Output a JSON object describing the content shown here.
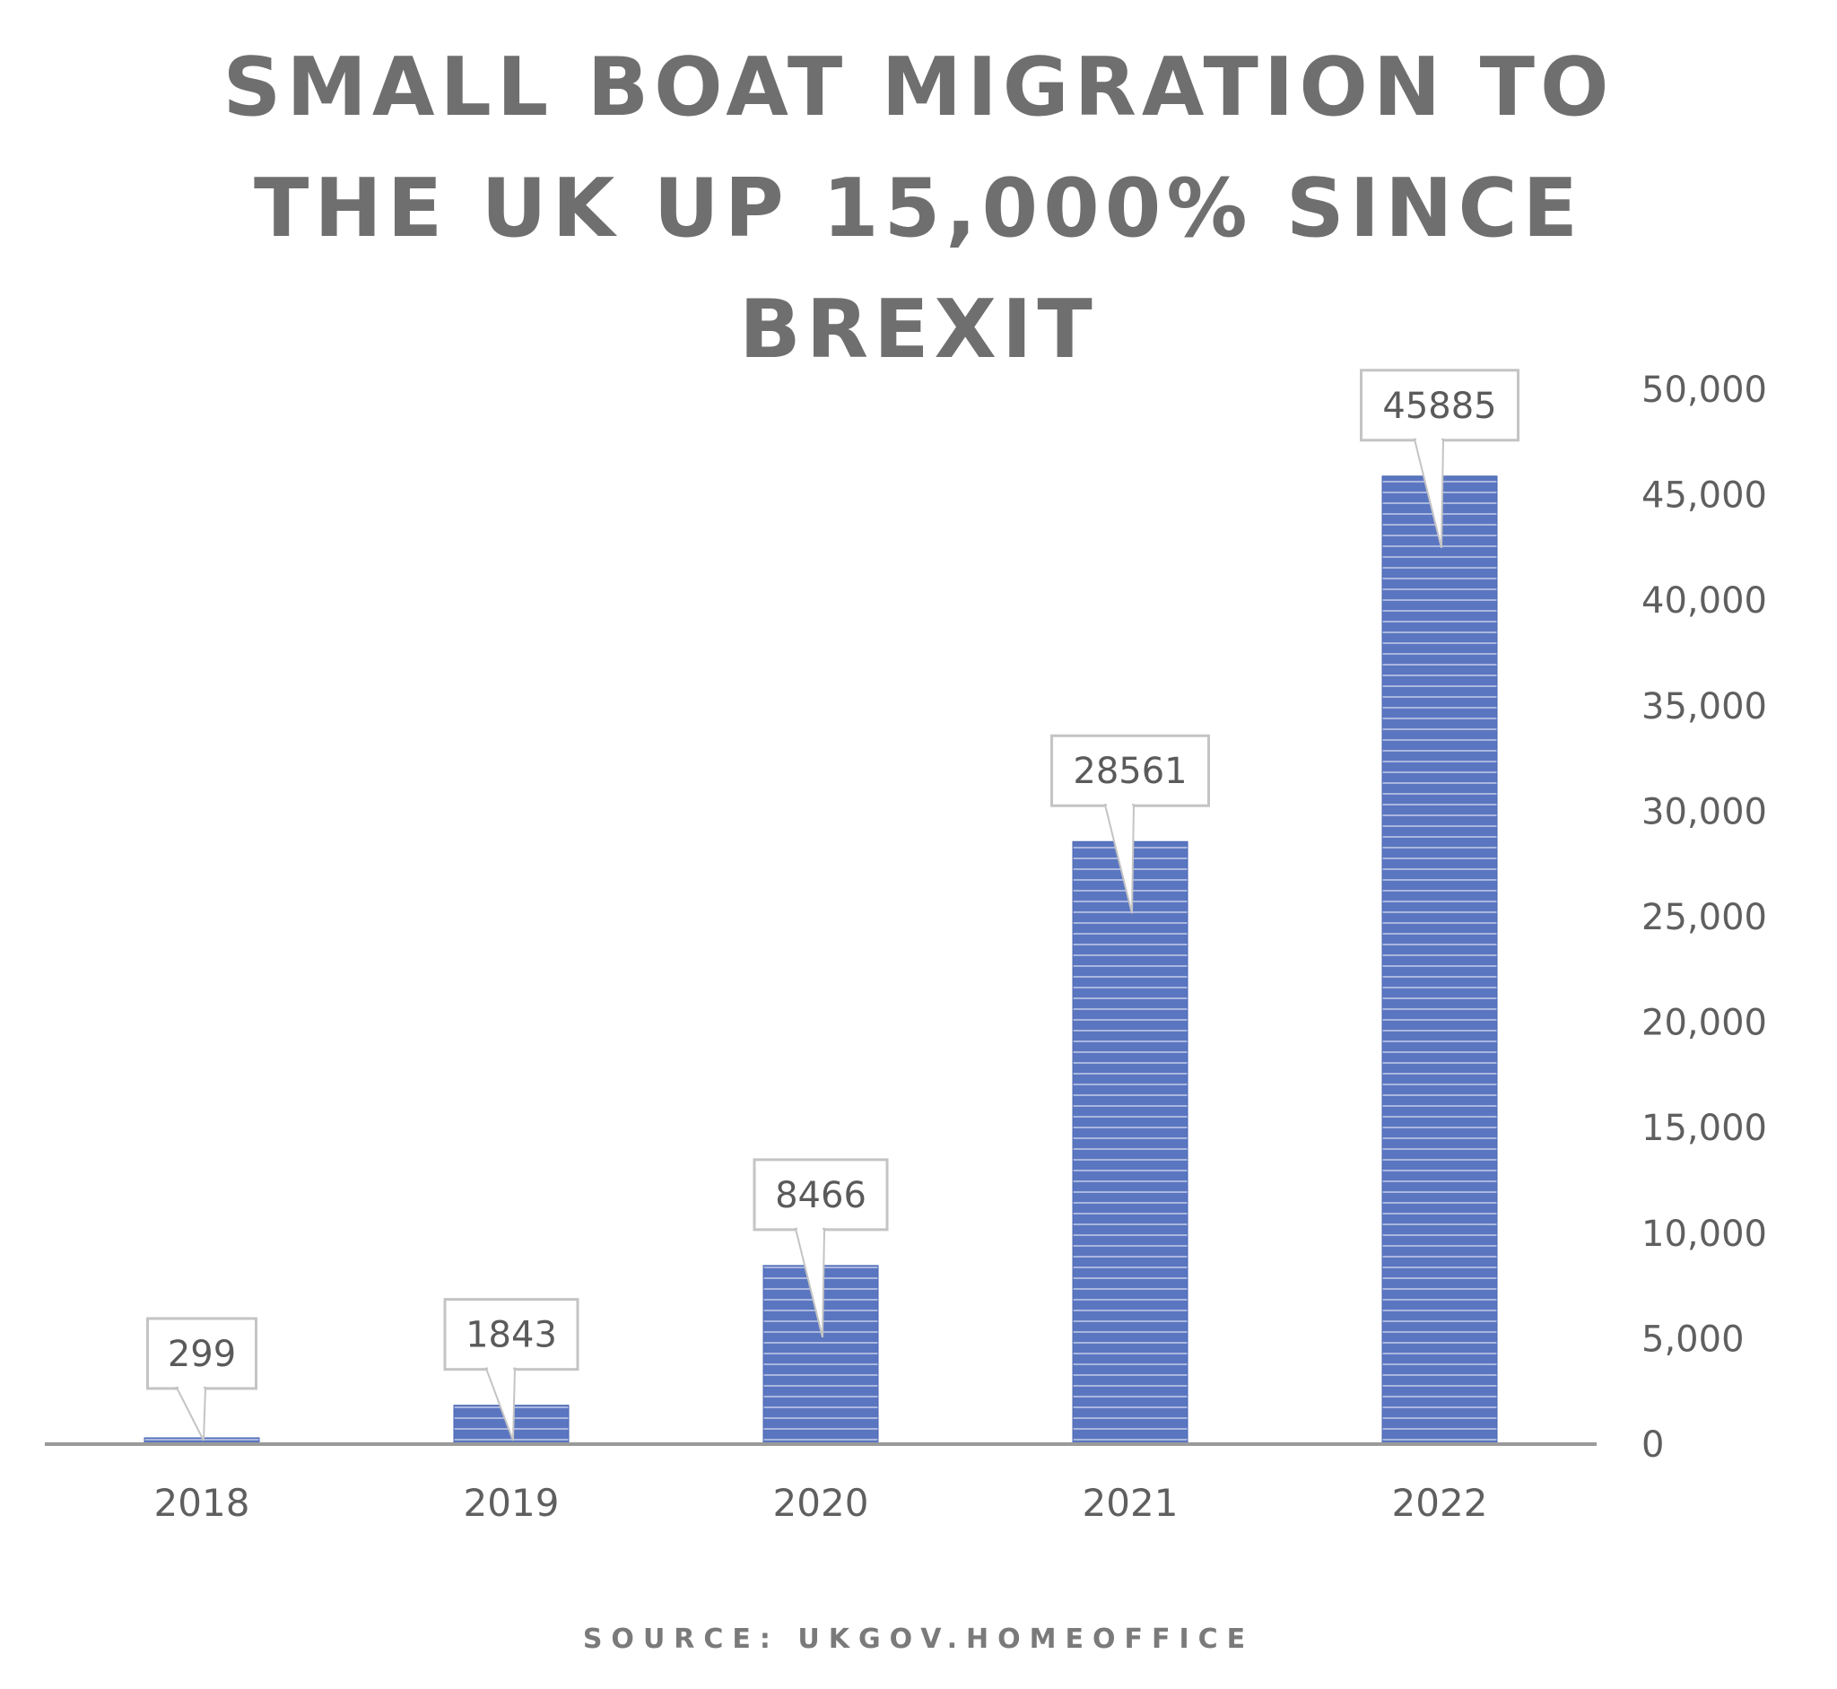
{
  "title_lines": [
    "SMALL BOAT MIGRATION TO",
    "THE UK UP 15,000% SINCE",
    "BREXIT"
  ],
  "source": "SOURCE: UKGOV.HOMEOFFICE",
  "colors": {
    "bar": "#5b76c0",
    "bar_stripe": "#e8edf8",
    "title": "#6f6f6f",
    "axis": "#9a9a9a",
    "text": "#5f5f5f"
  },
  "chart_data": {
    "type": "bar",
    "categories": [
      "2018",
      "2019",
      "2020",
      "2021",
      "2022"
    ],
    "values": [
      299,
      1843,
      8466,
      28561,
      45885
    ],
    "data_labels": [
      "299",
      "1843",
      "8466",
      "28561",
      "45885"
    ],
    "title": "SMALL BOAT MIGRATION TO THE UK UP 15,000% SINCE BREXIT",
    "xlabel": "",
    "ylabel": "",
    "ylim": [
      0,
      50000
    ],
    "yticks": [
      0,
      5000,
      10000,
      15000,
      20000,
      25000,
      30000,
      35000,
      40000,
      45000,
      50000
    ],
    "ytick_labels": [
      "0",
      "5,000",
      "10,000",
      "15,000",
      "20,000",
      "25,000",
      "30,000",
      "35,000",
      "40,000",
      "45,000",
      "50,000"
    ],
    "y_axis_position": "right",
    "grid": false,
    "legend": "none"
  }
}
